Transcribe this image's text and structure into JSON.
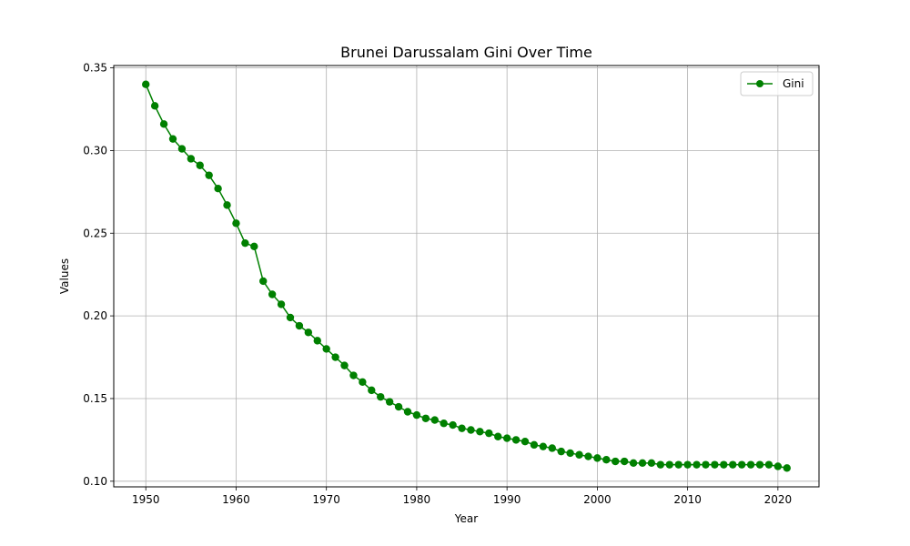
{
  "chart_data": {
    "type": "line",
    "title": "Brunei Darussalam Gini Over Time",
    "xlabel": "Year",
    "ylabel": "Values",
    "xlim": [
      1946.45,
      2024.55
    ],
    "ylim": [
      0.0966,
      0.3514
    ],
    "xticks": [
      1950,
      1960,
      1970,
      1980,
      1990,
      2000,
      2010,
      2020
    ],
    "yticks": [
      0.1,
      0.15,
      0.2,
      0.25,
      0.3,
      0.35
    ],
    "ytick_labels": [
      "0.10",
      "0.15",
      "0.20",
      "0.25",
      "0.30",
      "0.35"
    ],
    "grid": true,
    "legend_position": "top-right",
    "series": [
      {
        "name": "Gini",
        "color": "#008000",
        "marker": "circle",
        "x": [
          1950,
          1951,
          1952,
          1953,
          1954,
          1955,
          1956,
          1957,
          1958,
          1959,
          1960,
          1961,
          1962,
          1963,
          1964,
          1965,
          1966,
          1967,
          1968,
          1969,
          1970,
          1971,
          1972,
          1973,
          1974,
          1975,
          1976,
          1977,
          1978,
          1979,
          1980,
          1981,
          1982,
          1983,
          1984,
          1985,
          1986,
          1987,
          1988,
          1989,
          1990,
          1991,
          1992,
          1993,
          1994,
          1995,
          1996,
          1997,
          1998,
          1999,
          2000,
          2001,
          2002,
          2003,
          2004,
          2005,
          2006,
          2007,
          2008,
          2009,
          2010,
          2011,
          2012,
          2013,
          2014,
          2015,
          2016,
          2017,
          2018,
          2019,
          2020,
          2021
        ],
        "y": [
          0.34,
          0.327,
          0.316,
          0.307,
          0.301,
          0.295,
          0.291,
          0.285,
          0.277,
          0.267,
          0.256,
          0.244,
          0.242,
          0.221,
          0.213,
          0.207,
          0.199,
          0.194,
          0.19,
          0.185,
          0.18,
          0.175,
          0.17,
          0.164,
          0.16,
          0.155,
          0.151,
          0.148,
          0.145,
          0.142,
          0.14,
          0.138,
          0.137,
          0.135,
          0.134,
          0.132,
          0.131,
          0.13,
          0.129,
          0.127,
          0.126,
          0.125,
          0.124,
          0.122,
          0.121,
          0.12,
          0.118,
          0.117,
          0.116,
          0.115,
          0.114,
          0.113,
          0.112,
          0.112,
          0.111,
          0.111,
          0.111,
          0.11,
          0.11,
          0.11,
          0.11,
          0.11,
          0.11,
          0.11,
          0.11,
          0.11,
          0.11,
          0.11,
          0.11,
          0.11,
          0.109,
          0.108
        ]
      }
    ]
  }
}
